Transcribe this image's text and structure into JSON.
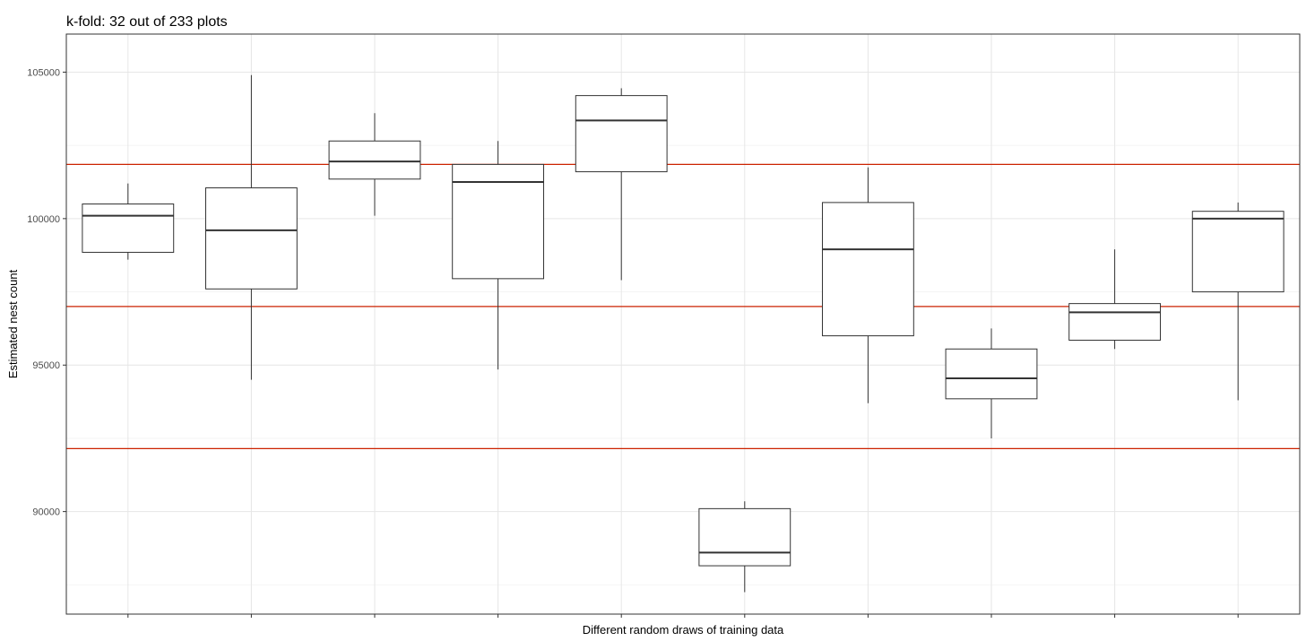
{
  "chart_data": {
    "type": "boxplot",
    "title": "k-fold: 32 out of 233 plots",
    "xlabel": "Different random draws of training data",
    "ylabel": "Estimated nest count",
    "ylim": [
      86500,
      106300
    ],
    "y_ticks": [
      90000,
      95000,
      100000,
      105000
    ],
    "y_tick_labels": [
      "90000",
      "95000",
      "100000",
      "105000"
    ],
    "x_tick_labels": [
      "",
      "",
      "",
      "",
      "",
      "",
      "",
      "",
      "",
      ""
    ],
    "grid": true,
    "legend": "none",
    "colors": {
      "box": "#333333",
      "reference_line": "#cc2200",
      "grid_major": "#e6e6e6",
      "grid_minor": "#f3f3f3",
      "panel_border": "#333333"
    },
    "reference_lines": [
      101850,
      97000,
      92150
    ],
    "boxes": [
      {
        "whisker_low": 98600,
        "q1": 98850,
        "median": 100100,
        "q3": 100500,
        "whisker_high": 101200
      },
      {
        "whisker_low": 94500,
        "q1": 97600,
        "median": 99600,
        "q3": 101050,
        "whisker_high": 104900
      },
      {
        "whisker_low": 100100,
        "q1": 101350,
        "median": 101950,
        "q3": 102650,
        "whisker_high": 103600
      },
      {
        "whisker_low": 94850,
        "q1": 97950,
        "median": 101250,
        "q3": 101850,
        "whisker_high": 102650
      },
      {
        "whisker_low": 97900,
        "q1": 101600,
        "median": 103350,
        "q3": 104200,
        "whisker_high": 104450
      },
      {
        "whisker_low": 87250,
        "q1": 88150,
        "median": 88600,
        "q3": 90100,
        "whisker_high": 90350
      },
      {
        "whisker_low": 93700,
        "q1": 96000,
        "median": 98950,
        "q3": 100550,
        "whisker_high": 101750
      },
      {
        "whisker_low": 92500,
        "q1": 93850,
        "median": 94550,
        "q3": 95550,
        "whisker_high": 96250
      },
      {
        "whisker_low": 95550,
        "q1": 95850,
        "median": 96800,
        "q3": 97100,
        "whisker_high": 98950
      },
      {
        "whisker_low": 93800,
        "q1": 97500,
        "median": 100000,
        "q3": 100250,
        "whisker_high": 100550
      }
    ]
  }
}
